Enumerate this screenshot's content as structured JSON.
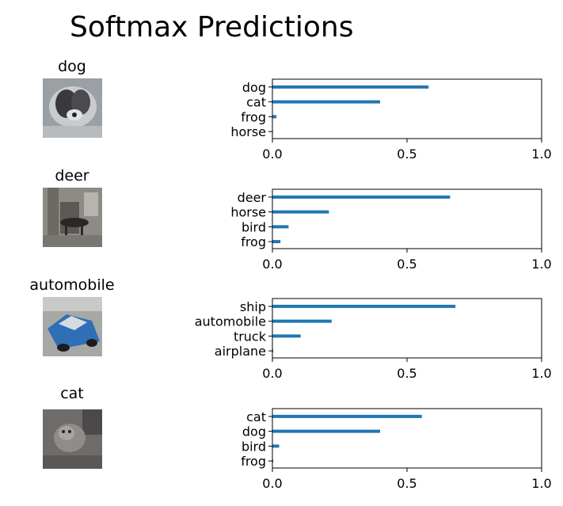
{
  "title": "Softmax Predictions",
  "colors": {
    "bar": "#1f77b4",
    "frame": "#000000"
  },
  "chart_data": [
    {
      "type": "bar",
      "orientation": "horizontal",
      "image_title": "dog",
      "image_icon": "dog-photo-thumbnail",
      "categories": [
        "dog",
        "cat",
        "frog",
        "horse"
      ],
      "values": [
        0.58,
        0.4,
        0.015,
        0.002
      ],
      "xlim": [
        0,
        1
      ],
      "xticks": [
        "0.0",
        "0.5",
        "1.0"
      ]
    },
    {
      "type": "bar",
      "orientation": "horizontal",
      "image_title": "deer",
      "image_icon": "deer-photo-thumbnail",
      "categories": [
        "deer",
        "horse",
        "bird",
        "frog"
      ],
      "values": [
        0.66,
        0.21,
        0.06,
        0.03
      ],
      "xlim": [
        0,
        1
      ],
      "xticks": [
        "0.0",
        "0.5",
        "1.0"
      ]
    },
    {
      "type": "bar",
      "orientation": "horizontal",
      "image_title": "automobile",
      "image_icon": "automobile-photo-thumbnail",
      "categories": [
        "ship",
        "automobile",
        "truck",
        "airplane"
      ],
      "values": [
        0.68,
        0.22,
        0.105,
        0.003
      ],
      "xlim": [
        0,
        1
      ],
      "xticks": [
        "0.0",
        "0.5",
        "1.0"
      ]
    },
    {
      "type": "bar",
      "orientation": "horizontal",
      "image_title": "cat",
      "image_icon": "cat-photo-thumbnail",
      "categories": [
        "cat",
        "dog",
        "bird",
        "frog"
      ],
      "values": [
        0.555,
        0.4,
        0.025,
        0.003
      ],
      "xlim": [
        0,
        1
      ],
      "xticks": [
        "0.0",
        "0.5",
        "1.0"
      ]
    }
  ]
}
